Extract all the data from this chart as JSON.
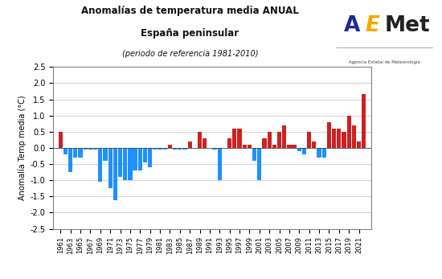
{
  "years": [
    1961,
    1962,
    1963,
    1964,
    1965,
    1966,
    1967,
    1968,
    1969,
    1970,
    1971,
    1972,
    1973,
    1974,
    1975,
    1976,
    1977,
    1978,
    1979,
    1980,
    1981,
    1982,
    1983,
    1984,
    1985,
    1986,
    1987,
    1988,
    1989,
    1990,
    1991,
    1992,
    1993,
    1994,
    1995,
    1996,
    1997,
    1998,
    1999,
    2000,
    2001,
    2002,
    2003,
    2004,
    2005,
    2006,
    2007,
    2008,
    2009,
    2010,
    2011,
    2012,
    2013,
    2014,
    2015,
    2016,
    2017,
    2018,
    2019,
    2020,
    2021,
    2022
  ],
  "values": [
    0.5,
    -0.2,
    -0.75,
    -0.3,
    -0.3,
    -0.05,
    -0.05,
    -0.05,
    -1.05,
    -0.4,
    -1.25,
    -1.62,
    -0.9,
    -1.0,
    -1.0,
    -0.7,
    -0.7,
    -0.45,
    -0.6,
    -0.05,
    -0.05,
    -0.05,
    0.1,
    -0.05,
    -0.05,
    -0.05,
    0.2,
    0.0,
    0.5,
    0.3,
    0.0,
    -0.05,
    -1.0,
    0.0,
    0.3,
    0.6,
    0.6,
    0.1,
    0.1,
    -0.4,
    -1.0,
    0.3,
    0.5,
    0.1,
    0.5,
    0.7,
    0.1,
    0.1,
    -0.1,
    -0.2,
    0.5,
    0.2,
    -0.3,
    -0.3,
    0.8,
    0.6,
    0.6,
    0.5,
    1.0,
    0.7,
    0.2,
    1.65
  ],
  "title_line1": "Anomalías de temperatura media ANUAL",
  "title_line2": "España peninsular",
  "title_line3": "(periodo de referencia 1981-2010)",
  "ylabel": "Anomalía Temp media (°C)",
  "ylim": [
    -2.5,
    2.5
  ],
  "yticks": [
    -2.5,
    -2.0,
    -1.5,
    -1.0,
    -0.5,
    0.0,
    0.5,
    1.0,
    1.5,
    2.0,
    2.5
  ],
  "color_positive": "#D02020",
  "color_negative": "#1E90FF",
  "bg_color": "#FFFFFF",
  "plot_bg_color": "#FFFFFF",
  "grid_color": "#CCCCCC",
  "border_color": "#808080",
  "aemet_blue": "#1B2A99",
  "aemet_yellow": "#F5A800",
  "aemet_red": "#D40000"
}
